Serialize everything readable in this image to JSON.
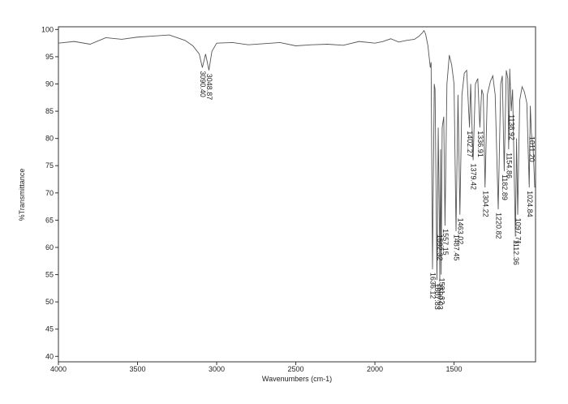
{
  "chart_data": {
    "type": "line",
    "xlabel": "Wavenumbers (cm-1)",
    "ylabel": "%Transmittance",
    "xlim": [
      4000,
      985
    ],
    "ylim": [
      39,
      100.5
    ],
    "xticks": [
      4000,
      3500,
      3000,
      2500,
      2000,
      1500
    ],
    "yticks": [
      40,
      45,
      50,
      55,
      60,
      65,
      70,
      75,
      80,
      85,
      90,
      95,
      100
    ],
    "color": "#555555",
    "x": [
      4000,
      3900,
      3800,
      3700,
      3600,
      3500,
      3400,
      3300,
      3250,
      3200,
      3150,
      3110,
      3090.4,
      3070,
      3048.87,
      3030,
      3000,
      2900,
      2800,
      2700,
      2600,
      2500,
      2400,
      2300,
      2200,
      2100,
      2000,
      1950,
      1900,
      1850,
      1800,
      1750,
      1720,
      1700,
      1690,
      1680,
      1665,
      1650,
      1645,
      1636.12,
      1625,
      1620,
      1607.83,
      1600,
      1592.32,
      1590.03,
      1585,
      1581.32,
      1575,
      1565,
      1557.15,
      1545,
      1530,
      1515,
      1500,
      1487.45,
      1475,
      1463.02,
      1450,
      1435,
      1420,
      1402.27,
      1395,
      1379.42,
      1365,
      1350,
      1336.91,
      1325,
      1315,
      1304.22,
      1290,
      1270,
      1255,
      1240,
      1220.82,
      1205,
      1195,
      1182.89,
      1170,
      1160,
      1154.86,
      1148,
      1138.92,
      1130,
      1112.36,
      1105,
      1097.71,
      1085,
      1070,
      1055,
      1040,
      1024.84,
      1018,
      1011.2,
      1000,
      990
    ],
    "values": [
      97.5,
      97.8,
      97.3,
      98.5,
      98.2,
      98.6,
      98.8,
      99.0,
      98.5,
      98.0,
      97.0,
      95.5,
      93.0,
      95.5,
      92.5,
      96.0,
      97.5,
      97.6,
      97.2,
      97.4,
      97.6,
      97.0,
      97.2,
      97.3,
      97.1,
      97.8,
      97.5,
      97.8,
      98.3,
      97.7,
      98.0,
      98.2,
      98.8,
      99.4,
      99.8,
      99.2,
      97,
      93,
      94,
      56,
      90,
      89,
      54,
      82,
      63,
      54,
      78,
      55,
      82,
      84,
      64,
      90,
      95.3,
      93.5,
      90,
      63,
      88,
      66,
      88,
      92,
      92.5,
      82,
      90,
      76,
      90,
      91,
      82,
      89,
      88,
      71,
      88,
      90.5,
      91.5,
      88,
      67,
      90,
      91.5,
      74,
      92.5,
      91,
      78,
      92.8,
      85,
      89,
      62,
      80,
      66,
      87,
      89.5,
      88.5,
      86.5,
      71,
      86,
      81,
      78,
      71
    ],
    "peaks": [
      {
        "value": 3090.4,
        "label": "3090.40",
        "y": 93.0
      },
      {
        "value": 3048.87,
        "label": "3048.87",
        "y": 92.5
      },
      {
        "value": 1636.12,
        "label": "1636.12",
        "y": 56
      },
      {
        "value": 1607.83,
        "label": "1607.83",
        "y": 54
      },
      {
        "value": 1592.32,
        "label": "1592.32",
        "y": 63
      },
      {
        "value": 1590.03,
        "label": "1590.03",
        "y": 54
      },
      {
        "value": 1581.32,
        "label": "1581.32",
        "y": 55
      },
      {
        "value": 1557.15,
        "label": "1557.15",
        "y": 64
      },
      {
        "value": 1487.45,
        "label": "1487.45",
        "y": 63
      },
      {
        "value": 1463.02,
        "label": "1463.02",
        "y": 66
      },
      {
        "value": 1402.27,
        "label": "1402.27",
        "y": 82
      },
      {
        "value": 1379.42,
        "label": "1379.42",
        "y": 76
      },
      {
        "value": 1336.91,
        "label": "1336.91",
        "y": 82
      },
      {
        "value": 1304.22,
        "label": "1304.22",
        "y": 71
      },
      {
        "value": 1220.82,
        "label": "1220.82",
        "y": 67
      },
      {
        "value": 1182.89,
        "label": "1182.89",
        "y": 74
      },
      {
        "value": 1154.86,
        "label": "1154.86",
        "y": 78
      },
      {
        "value": 1138.92,
        "label": "1138.92",
        "y": 85
      },
      {
        "value": 1112.36,
        "label": "1112.36",
        "y": 62
      },
      {
        "value": 1097.71,
        "label": "1097.71",
        "y": 66
      },
      {
        "value": 1024.84,
        "label": "1024.84",
        "y": 71
      },
      {
        "value": 1011.2,
        "label": "1011.20",
        "y": 81
      }
    ]
  }
}
